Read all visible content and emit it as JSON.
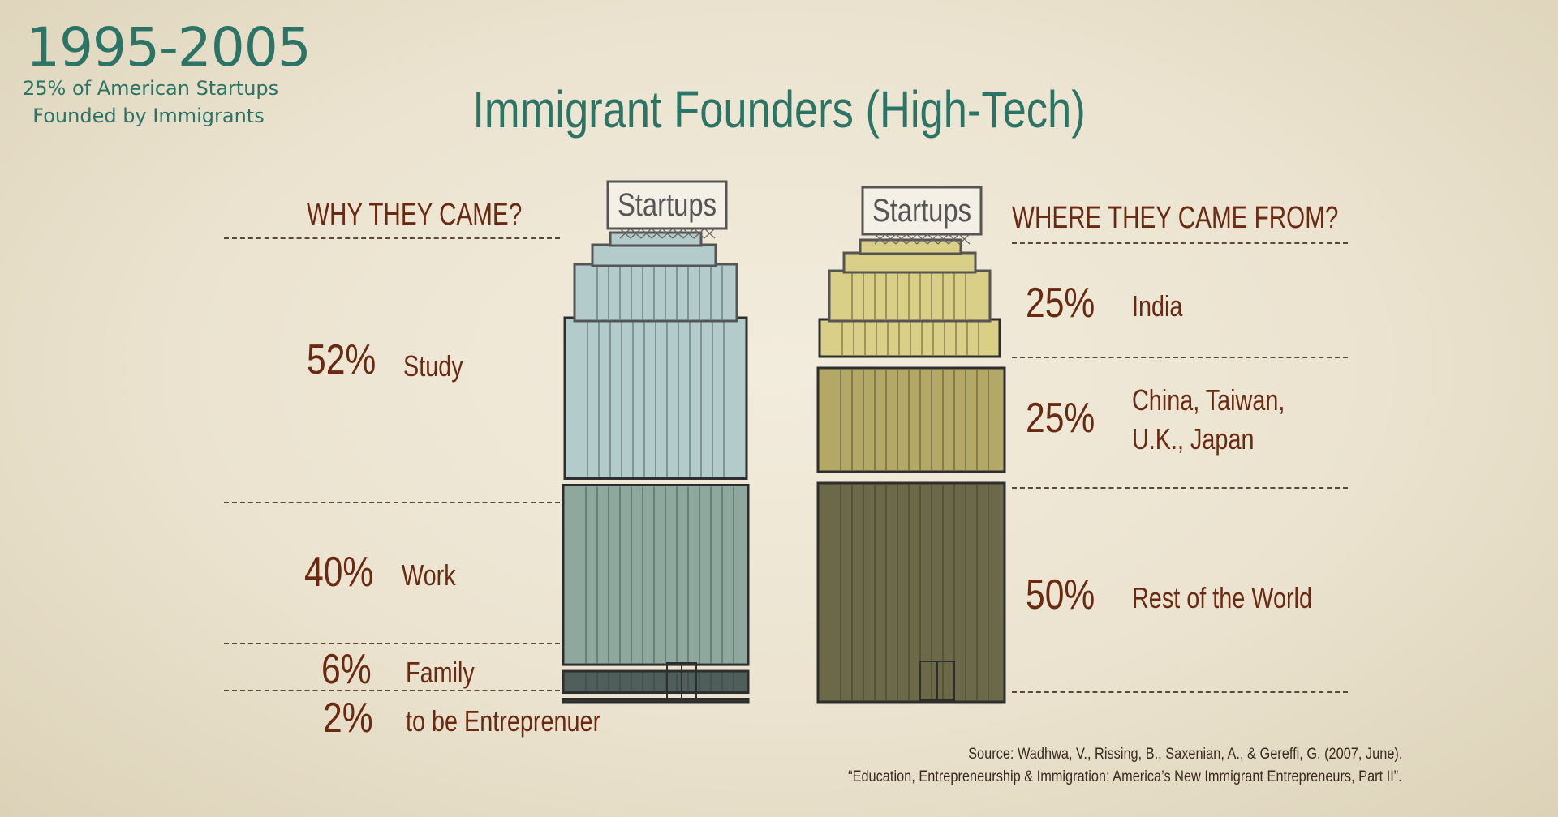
{
  "period": {
    "years": "1995-2005",
    "subtitle_line1": "25% of American Startups",
    "subtitle_line2": "Founded by Immigrants"
  },
  "title": "Immigrant Founders (High-Tech)",
  "buildings": {
    "sign_label": "Startups"
  },
  "chart_data": [
    {
      "type": "bar",
      "stacked": true,
      "title": "WHY THEY CAME?",
      "segments": [
        {
          "label": "Study",
          "value": 52,
          "display": "52%"
        },
        {
          "label": "Work",
          "value": 40,
          "display": "40%"
        },
        {
          "label": "Family",
          "value": 6,
          "display": "6%"
        },
        {
          "label": "to be Entreprenuer",
          "value": 2,
          "display": "2%"
        }
      ]
    },
    {
      "type": "bar",
      "stacked": true,
      "title": "WHERE THEY CAME FROM?",
      "segments": [
        {
          "label_lines": [
            "India"
          ],
          "value": 25,
          "display": "25%"
        },
        {
          "label_lines": [
            "China, Taiwan,",
            "U.K., Japan"
          ],
          "value": 25,
          "display": "25%"
        },
        {
          "label_lines": [
            "Rest of the World"
          ],
          "value": 50,
          "display": "50%"
        }
      ]
    }
  ],
  "source": {
    "line1": "Source: Wadhwa, V., Rissing, B., Saxenian, A., & Gereffi, G. (2007, June).",
    "line2": "“Education, Entrepreneurship & Immigration: America’s New Immigrant Entrepreneurs, Part II”."
  },
  "colors": {
    "teal_text": "#2b7466",
    "brown_text": "#6a2a12",
    "building_left": [
      "#b3cbca",
      "#8fa89d",
      "#4f5e5a",
      "#3d4542"
    ],
    "building_right": [
      "#d9cf87",
      "#b3a865",
      "#6b6948"
    ]
  }
}
